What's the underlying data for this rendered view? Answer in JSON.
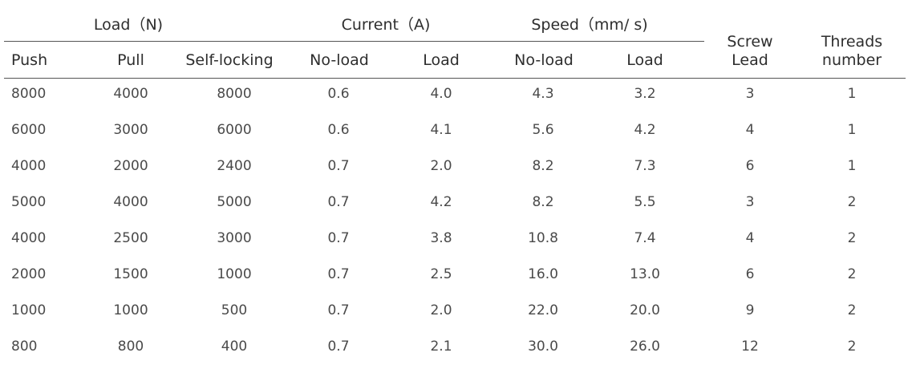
{
  "header": {
    "group_load": "Load（N)",
    "group_current": "Current（A)",
    "group_speed": "Speed（mm/ s)",
    "push": "Push",
    "pull": "Pull",
    "self_locking": "Self-locking",
    "current_noload": "No-load",
    "current_load": "Load",
    "speed_noload": "No-load",
    "speed_load": "Load",
    "screw_lead_1": "Screw",
    "screw_lead_2": "Lead",
    "threads_1": "Threads",
    "threads_2": "number"
  },
  "rows": [
    [
      "8000",
      "4000",
      "8000",
      "0.6",
      "4.0",
      "4.3",
      "3.2",
      "3",
      "1"
    ],
    [
      "6000",
      "3000",
      "6000",
      "0.6",
      "4.1",
      "5.6",
      "4.2",
      "4",
      "1"
    ],
    [
      "4000",
      "2000",
      "2400",
      "0.7",
      "2.0",
      "8.2",
      "7.3",
      "6",
      "1"
    ],
    [
      "5000",
      "4000",
      "5000",
      "0.7",
      "4.2",
      "8.2",
      "5.5",
      "3",
      "2"
    ],
    [
      "4000",
      "2500",
      "3000",
      "0.7",
      "3.8",
      "10.8",
      "7.4",
      "4",
      "2"
    ],
    [
      "2000",
      "1500",
      "1000",
      "0.7",
      "2.5",
      "16.0",
      "13.0",
      "6",
      "2"
    ],
    [
      "1000",
      "1000",
      "500",
      "0.7",
      "2.0",
      "22.0",
      "20.0",
      "9",
      "2"
    ],
    [
      "800",
      "800",
      "400",
      "0.7",
      "2.1",
      "30.0",
      "26.0",
      "12",
      "2"
    ]
  ]
}
